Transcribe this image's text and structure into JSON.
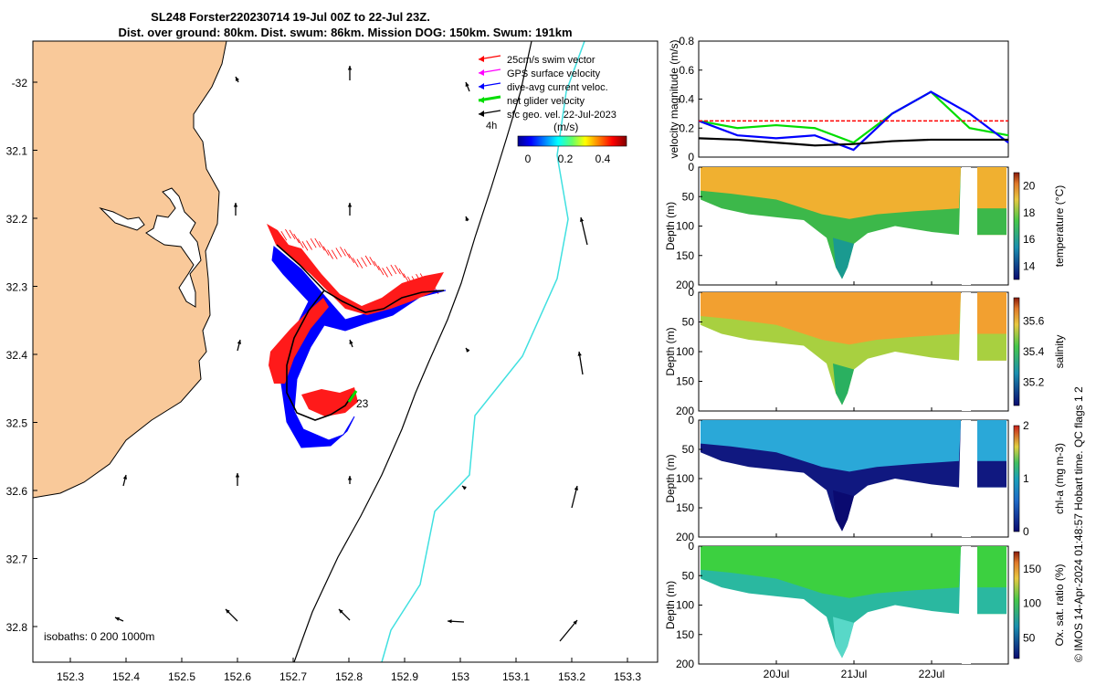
{
  "title": {
    "line1": "SL248 Forster220230714 19-Jul 00Z to 22-Jul 23Z.",
    "line2": "Dist. over ground: 80km. Dist. swum: 86km. Mission DOG: 150km. Swum: 191km"
  },
  "map": {
    "legend": [
      {
        "label": "25cm/s swim vector",
        "color": "#ff0000"
      },
      {
        "label": "GPS surface velocity",
        "color": "#ff00ff"
      },
      {
        "label": "dive-avg current veloc.",
        "color": "#0000ff"
      },
      {
        "label": "net glider velocity",
        "color": "#00dd00"
      },
      {
        "label": "sfc geo. vel. 22-Jul-2023",
        "color": "#000000"
      }
    ],
    "time_note": "4h",
    "colorbar": {
      "unit": "(m/s)",
      "ticks": [
        "0",
        "0.2",
        "0.4"
      ]
    },
    "isobath_note": "isobaths: 0   200  1000m",
    "glider_label": "23",
    "lon_ticks": [
      "152.3",
      "152.4",
      "152.5",
      "152.6",
      "152.7",
      "152.8",
      "152.9",
      "153",
      "153.1",
      "153.2",
      "153.3"
    ],
    "lat_ticks": [
      "-32",
      "32.1",
      "32.2",
      "32.3",
      "32.4",
      "32.5",
      "32.6",
      "32.7",
      "32.8"
    ],
    "colors": {
      "land": "#f9c99a",
      "isobath_200": "#000000",
      "isobath_1000": "#40e0e0"
    }
  },
  "chart_data": [
    {
      "type": "line",
      "ylabel": "velocity magnitude (m/s)",
      "ylim": [
        0,
        0.8
      ],
      "yticks": [
        "0",
        "0.2",
        "0.4",
        "0.6",
        "0.8"
      ],
      "x": [
        "19-Jul",
        "19.5-Jul",
        "20-Jul",
        "20.5-Jul",
        "21-Jul",
        "21.5-Jul",
        "22-Jul",
        "22.5-Jul",
        "23-Jul"
      ],
      "series": [
        {
          "color": "#00dd00",
          "values": [
            0.25,
            0.2,
            0.22,
            0.2,
            0.1,
            0.3,
            0.45,
            0.2,
            0.15
          ]
        },
        {
          "color": "#0000ff",
          "values": [
            0.25,
            0.15,
            0.13,
            0.15,
            0.05,
            0.3,
            0.45,
            0.3,
            0.1
          ]
        },
        {
          "color": "#000000",
          "values": [
            0.13,
            0.12,
            0.1,
            0.08,
            0.09,
            0.11,
            0.12,
            0.12,
            0.12
          ]
        },
        {
          "color": "#ff0000",
          "values": [
            0.25,
            0.25,
            0.25,
            0.25,
            0.25,
            0.25,
            0.25,
            0.25,
            0.25
          ]
        }
      ]
    },
    {
      "type": "heatmap",
      "ylabel": "Depth (m)",
      "clabel": "temperature (°C)",
      "yticks": [
        "0",
        "50",
        "100",
        "150",
        "200"
      ],
      "cticks": [
        "14",
        "16",
        "18",
        "20"
      ],
      "crange": [
        13,
        21
      ]
    },
    {
      "type": "heatmap",
      "ylabel": "Depth (m)",
      "clabel": "salinity",
      "yticks": [
        "0",
        "50",
        "100",
        "150",
        "200"
      ],
      "cticks": [
        "35.2",
        "35.4",
        "35.6"
      ],
      "crange": [
        35.05,
        35.75
      ]
    },
    {
      "type": "heatmap",
      "ylabel": "Depth (m)",
      "clabel": "chl-a (mg m-3)",
      "yticks": [
        "0",
        "50",
        "100",
        "150",
        "200"
      ],
      "cticks": [
        "0",
        "1",
        "2"
      ],
      "crange": [
        0,
        2
      ]
    },
    {
      "type": "heatmap",
      "ylabel": "Depth (m)",
      "clabel": "Ox. sat. ratio (%)",
      "yticks": [
        "0",
        "50",
        "100",
        "150",
        "200"
      ],
      "cticks": [
        "50",
        "100",
        "150"
      ],
      "crange": [
        20,
        175
      ]
    }
  ],
  "time_ticks": [
    "20Jul",
    "21Jul",
    "22Jul"
  ],
  "side_label": "© IMOS 14-Apr-2024 01:48:57 Hobart time. QC flags 1  2"
}
